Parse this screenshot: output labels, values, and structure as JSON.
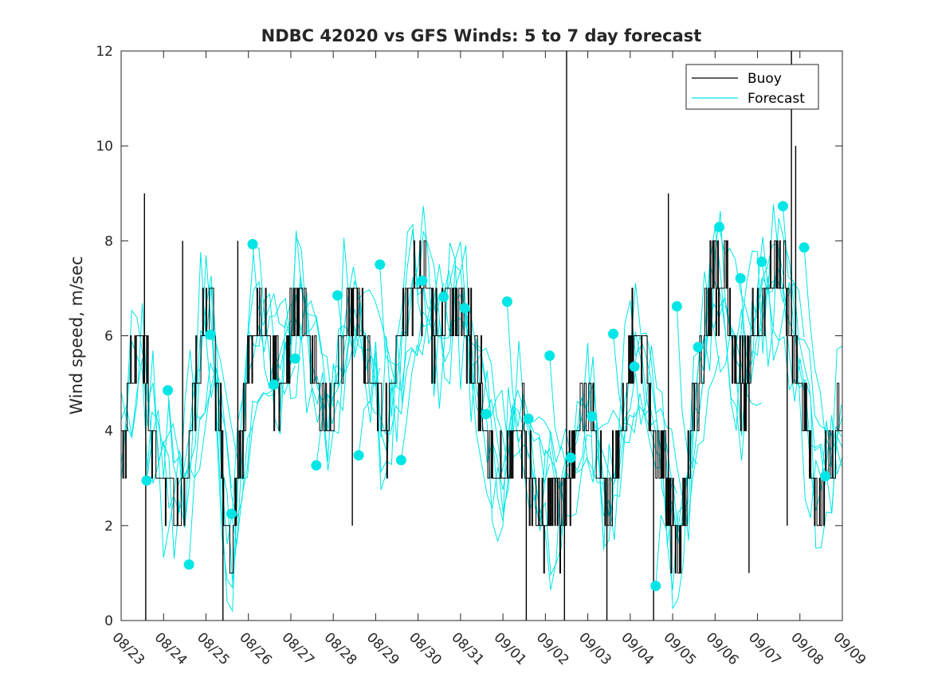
{
  "chart_data": {
    "type": "line",
    "title": "NDBC 42020 vs GFS Winds: 5 to 7 day forecast",
    "xlabel": "",
    "ylabel": "Wind speed, m/sec",
    "xlim_days": [
      0,
      17
    ],
    "ylim": [
      0,
      12
    ],
    "yticks": [
      0,
      2,
      4,
      6,
      8,
      10,
      12
    ],
    "xtick_labels": [
      "08/23",
      "08/24",
      "08/25",
      "08/26",
      "08/27",
      "08/28",
      "08/29",
      "08/30",
      "08/31",
      "09/01",
      "09/02",
      "09/03",
      "09/04",
      "09/05",
      "09/06",
      "09/07",
      "09/08",
      "09/09"
    ],
    "legend": {
      "location": "top-right",
      "entries": [
        "Buoy",
        "Forecast"
      ]
    },
    "colors": {
      "buoy": "#000000",
      "forecast": "#00e5e5",
      "axis": "#262626"
    },
    "buoy_anchors": {
      "x": [
        0.0,
        0.2,
        0.45,
        0.6,
        0.75,
        0.9,
        1.0,
        1.3,
        1.5,
        1.7,
        1.9,
        2.1,
        2.3,
        2.45,
        2.6,
        2.8,
        3.0,
        3.2,
        3.4,
        3.6,
        3.8,
        4.0,
        4.2,
        4.4,
        4.6,
        4.8,
        5.0,
        5.2,
        5.4,
        5.6,
        5.8,
        6.0,
        6.2,
        6.4,
        6.6,
        6.8,
        7.0,
        7.2,
        7.4,
        7.6,
        7.8,
        8.0,
        8.2,
        8.4,
        8.6,
        8.8,
        9.0,
        9.2,
        9.4,
        9.6,
        9.8,
        10.0,
        10.2,
        10.4,
        10.6,
        10.8,
        11.0,
        11.2,
        11.4,
        11.6,
        11.8,
        12.0,
        12.2,
        12.4,
        12.6,
        12.8,
        13.0,
        13.2,
        13.4,
        13.6,
        13.8,
        14.0,
        14.2,
        14.4,
        14.6,
        14.8,
        15.0,
        15.2,
        15.4,
        15.6,
        15.8,
        16.0,
        16.2,
        16.4,
        16.6,
        16.8,
        17.0
      ],
      "y": [
        3.5,
        5.0,
        6.0,
        5.0,
        4.0,
        3.0,
        3.0,
        2.5,
        3.0,
        4.5,
        6.0,
        7.0,
        4.5,
        2.0,
        1.2,
        3.5,
        5.5,
        6.5,
        6.0,
        5.5,
        5.0,
        6.0,
        7.0,
        6.0,
        5.0,
        4.0,
        4.5,
        6.0,
        7.0,
        6.5,
        5.5,
        5.0,
        4.0,
        5.0,
        6.0,
        7.0,
        7.5,
        7.0,
        6.0,
        6.0,
        6.5,
        6.5,
        6.0,
        5.0,
        4.0,
        3.5,
        3.0,
        4.0,
        4.5,
        3.5,
        2.5,
        2.0,
        2.5,
        2.5,
        3.5,
        4.5,
        4.5,
        3.5,
        2.5,
        3.0,
        4.0,
        5.5,
        6.0,
        5.0,
        4.0,
        3.0,
        1.5,
        2.0,
        3.5,
        5.0,
        6.5,
        7.5,
        7.0,
        6.0,
        5.0,
        5.5,
        6.5,
        7.0,
        7.5,
        7.0,
        6.0,
        5.0,
        4.0,
        2.0,
        3.0,
        3.5,
        4.5
      ]
    },
    "buoy_spikes": [
      {
        "x": 0.55,
        "y": 9.0
      },
      {
        "x": 0.58,
        "y": 0.0
      },
      {
        "x": 1.45,
        "y": 8.0
      },
      {
        "x": 2.4,
        "y": 0.0
      },
      {
        "x": 2.75,
        "y": 8.0
      },
      {
        "x": 5.45,
        "y": 2.0
      },
      {
        "x": 9.55,
        "y": 0.0
      },
      {
        "x": 10.5,
        "y": 12.0
      },
      {
        "x": 10.45,
        "y": 0.0
      },
      {
        "x": 11.45,
        "y": 0.0
      },
      {
        "x": 12.55,
        "y": 0.0
      },
      {
        "x": 12.9,
        "y": 9.0
      },
      {
        "x": 14.8,
        "y": 1.0
      },
      {
        "x": 15.8,
        "y": 12.0
      },
      {
        "x": 15.9,
        "y": 10.0
      },
      {
        "x": 15.7,
        "y": 2.0
      }
    ],
    "forecast_markers": {
      "x": [
        0.6,
        1.1,
        1.6,
        2.1,
        2.6,
        3.1,
        3.6,
        4.1,
        4.6,
        5.1,
        5.6,
        6.1,
        6.6,
        7.1,
        7.6,
        8.1,
        8.6,
        9.1,
        9.6,
        10.1,
        10.6,
        11.1,
        11.6,
        12.1,
        12.6,
        13.1,
        13.6,
        14.1,
        14.6,
        15.1,
        15.6,
        16.1,
        16.6
      ],
      "y": [
        2.95,
        4.85,
        1.18,
        6.02,
        2.25,
        7.93,
        4.97,
        5.52,
        3.27,
        6.85,
        3.48,
        7.5,
        3.38,
        7.16,
        6.82,
        6.58,
        4.35,
        6.72,
        4.25,
        5.58,
        3.43,
        4.3,
        6.04,
        5.35,
        0.73,
        6.62,
        5.76,
        8.29,
        7.21,
        7.56,
        8.73,
        7.86,
        3.04
      ]
    }
  },
  "legend_labels": {
    "buoy": "Buoy",
    "forecast": "Forecast"
  }
}
